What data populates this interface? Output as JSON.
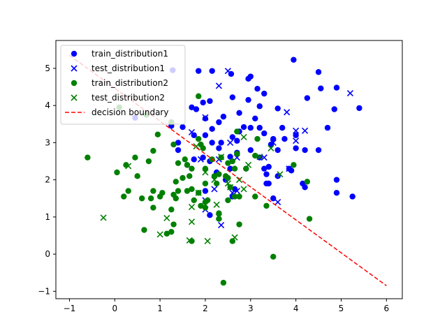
{
  "chart_data": {
    "type": "scatter",
    "xlim": [
      -1.3,
      6.35
    ],
    "ylim": [
      -1.2,
      5.75
    ],
    "x_ticks": [
      -1,
      0,
      1,
      2,
      3,
      4,
      5,
      6
    ],
    "y_ticks": [
      -1,
      0,
      1,
      2,
      3,
      4,
      5
    ],
    "grid": false,
    "legend_position": "top-left",
    "series": [
      {
        "name": "train_distribution1",
        "marker": "circle",
        "color": "#0000ff",
        "points": [
          [
            1.28,
            4.95
          ],
          [
            1.85,
            4.93
          ],
          [
            2.15,
            4.93
          ],
          [
            2.57,
            4.85
          ],
          [
            2.95,
            4.72
          ],
          [
            3.0,
            4.78
          ],
          [
            3.95,
            5.23
          ],
          [
            4.5,
            4.9
          ],
          [
            4.55,
            4.46
          ],
          [
            4.9,
            4.48
          ],
          [
            3.15,
            4.45
          ],
          [
            3.3,
            4.32
          ],
          [
            1.7,
            3.95
          ],
          [
            1.8,
            3.9
          ],
          [
            1.95,
            4.08
          ],
          [
            2.1,
            4.12
          ],
          [
            2.6,
            4.22
          ],
          [
            2.95,
            4.15
          ],
          [
            3.2,
            3.98
          ],
          [
            3.6,
            3.92
          ],
          [
            4.25,
            4.2
          ],
          [
            4.85,
            3.9
          ],
          [
            5.4,
            3.93
          ],
          [
            0.45,
            3.67
          ],
          [
            1.25,
            3.45
          ],
          [
            1.5,
            3.42
          ],
          [
            2.0,
            3.65
          ],
          [
            2.15,
            3.37
          ],
          [
            2.3,
            3.55
          ],
          [
            2.4,
            3.7
          ],
          [
            2.75,
            3.8
          ],
          [
            3.1,
            3.65
          ],
          [
            3.2,
            3.4
          ],
          [
            3.7,
            3.4
          ],
          [
            4.7,
            3.4
          ],
          [
            1.4,
            3.0
          ],
          [
            1.75,
            3.2
          ],
          [
            2.0,
            3.2
          ],
          [
            2.15,
            3.0
          ],
          [
            2.35,
            3.0
          ],
          [
            2.6,
            3.15
          ],
          [
            2.7,
            3.05
          ],
          [
            2.85,
            3.42
          ],
          [
            3.0,
            3.4
          ],
          [
            3.3,
            3.25
          ],
          [
            3.5,
            3.1
          ],
          [
            3.75,
            3.1
          ],
          [
            4.0,
            3.2
          ],
          [
            1.4,
            2.8
          ],
          [
            1.75,
            2.55
          ],
          [
            1.95,
            2.6
          ],
          [
            2.3,
            2.85
          ],
          [
            2.55,
            2.62
          ],
          [
            2.7,
            2.73
          ],
          [
            3.0,
            2.8
          ],
          [
            3.2,
            2.6
          ],
          [
            3.45,
            2.95
          ],
          [
            3.6,
            2.8
          ],
          [
            4.0,
            2.85
          ],
          [
            4.2,
            2.8
          ],
          [
            4.5,
            2.8
          ],
          [
            1.6,
            2.4
          ],
          [
            2.1,
            2.5
          ],
          [
            2.25,
            2.2
          ],
          [
            2.55,
            2.3
          ],
          [
            2.9,
            2.3
          ],
          [
            3.3,
            2.3
          ],
          [
            3.4,
            2.35
          ],
          [
            3.35,
            2.15
          ],
          [
            3.6,
            2.1
          ],
          [
            3.85,
            2.3
          ],
          [
            2.45,
            2.0
          ],
          [
            2.65,
            1.75
          ],
          [
            3.35,
            1.9
          ],
          [
            3.4,
            1.9
          ],
          [
            3.9,
            2.25
          ],
          [
            4.15,
            1.9
          ],
          [
            4.2,
            1.8
          ],
          [
            4.9,
            2.0
          ],
          [
            3.5,
            1.5
          ],
          [
            2.1,
            1.05
          ],
          [
            2.6,
            1.55
          ],
          [
            4.9,
            1.65
          ],
          [
            5.25,
            1.55
          ],
          [
            2.75,
            3.3
          ],
          [
            2.0,
            1.7
          ]
        ]
      },
      {
        "name": "test_distribution1",
        "marker": "x",
        "color": "#0000ff",
        "points": [
          [
            2.5,
            4.93
          ],
          [
            5.2,
            4.33
          ],
          [
            2.3,
            4.53
          ],
          [
            3.8,
            3.82
          ],
          [
            1.7,
            3.28
          ],
          [
            2.0,
            3.68
          ],
          [
            2.55,
            3.0
          ],
          [
            3.5,
            3.0
          ],
          [
            4.0,
            3.32
          ],
          [
            4.2,
            3.32
          ],
          [
            1.9,
            2.55
          ],
          [
            2.3,
            2.55
          ],
          [
            2.7,
            2.6
          ],
          [
            3.3,
            2.6
          ],
          [
            3.85,
            2.3
          ],
          [
            4.0,
            3.05
          ],
          [
            2.2,
            1.75
          ],
          [
            2.7,
            1.7
          ],
          [
            2.6,
            1.65
          ],
          [
            3.6,
            1.4
          ],
          [
            2.0,
            1.45
          ],
          [
            2.0,
            1.2
          ],
          [
            2.35,
            0.78
          ]
        ]
      },
      {
        "name": "train_distribution2",
        "marker": "circle",
        "color": "#008000",
        "points": [
          [
            0.1,
            3.95
          ],
          [
            0.7,
            3.75
          ],
          [
            0.95,
            3.22
          ],
          [
            1.25,
            3.55
          ],
          [
            1.3,
            2.95
          ],
          [
            1.4,
            2.45
          ],
          [
            1.55,
            2.55
          ],
          [
            1.6,
            2.4
          ],
          [
            1.65,
            2.1
          ],
          [
            1.7,
            2.3
          ],
          [
            1.85,
            3.1
          ],
          [
            1.9,
            2.95
          ],
          [
            1.95,
            2.85
          ],
          [
            2.0,
            2.3
          ],
          [
            1.5,
            2.05
          ],
          [
            1.35,
            1.95
          ],
          [
            1.4,
            1.7
          ],
          [
            1.6,
            1.7
          ],
          [
            1.7,
            1.75
          ],
          [
            1.85,
            1.65
          ],
          [
            1.75,
            1.45
          ],
          [
            1.9,
            1.3
          ],
          [
            2.0,
            1.25
          ],
          [
            2.05,
            1.45
          ],
          [
            1.3,
            1.6
          ],
          [
            1.35,
            1.5
          ],
          [
            1.25,
            1.2
          ],
          [
            1.05,
            1.65
          ],
          [
            1.0,
            1.55
          ],
          [
            0.85,
            1.7
          ],
          [
            0.85,
            1.25
          ],
          [
            0.8,
            1.5
          ],
          [
            0.6,
            1.5
          ],
          [
            0.3,
            1.7
          ],
          [
            0.2,
            1.55
          ],
          [
            0.05,
            2.2
          ],
          [
            0.25,
            2.4
          ],
          [
            0.45,
            2.6
          ],
          [
            0.5,
            2.1
          ],
          [
            0.75,
            2.5
          ],
          [
            0.85,
            2.78
          ],
          [
            -0.6,
            2.6
          ],
          [
            0.65,
            0.65
          ],
          [
            1.15,
            0.55
          ],
          [
            1.25,
            0.6
          ],
          [
            1.3,
            0.8
          ],
          [
            1.7,
            0.35
          ],
          [
            2.3,
            0.95
          ],
          [
            2.3,
            1.1
          ],
          [
            2.6,
            0.35
          ],
          [
            2.75,
            0.8
          ],
          [
            2.4,
            -0.77
          ],
          [
            3.5,
            -0.07
          ],
          [
            4.3,
            0.95
          ],
          [
            2.25,
            1.9
          ],
          [
            2.3,
            2.15
          ],
          [
            2.45,
            2.1
          ],
          [
            2.5,
            2.45
          ],
          [
            2.6,
            2.5
          ],
          [
            2.65,
            2.3
          ],
          [
            2.9,
            2.3
          ],
          [
            3.1,
            2.65
          ],
          [
            3.1,
            1.55
          ],
          [
            3.35,
            1.3
          ],
          [
            3.95,
            2.4
          ],
          [
            4.25,
            1.95
          ],
          [
            2.5,
            2.05
          ],
          [
            2.55,
            1.8
          ],
          [
            2.65,
            1.55
          ],
          [
            2.75,
            1.55
          ],
          [
            2.7,
            2.7
          ],
          [
            2.5,
            1.45
          ],
          [
            2.0,
            1.9
          ],
          [
            2.15,
            2.55
          ],
          [
            2.35,
            2.6
          ],
          [
            1.85,
            4.25
          ],
          [
            2.7,
            3.3
          ],
          [
            3.15,
            3.1
          ],
          [
            2.0,
            1.4
          ],
          [
            2.2,
            2.1
          ]
        ]
      },
      {
        "name": "test_distribution2",
        "marker": "x",
        "color": "#008000",
        "points": [
          [
            0.3,
            2.37
          ],
          [
            1.0,
            0.53
          ],
          [
            -0.25,
            0.98
          ],
          [
            1.15,
            0.97
          ],
          [
            1.65,
            0.37
          ],
          [
            1.7,
            1.27
          ],
          [
            1.7,
            0.87
          ],
          [
            2.05,
            0.35
          ],
          [
            2.25,
            1.33
          ],
          [
            2.3,
            1.0
          ],
          [
            2.65,
            0.45
          ],
          [
            1.8,
            2.9
          ],
          [
            1.85,
            1.65
          ],
          [
            2.0,
            2.2
          ],
          [
            2.2,
            2.0
          ],
          [
            2.35,
            2.62
          ],
          [
            2.5,
            1.9
          ],
          [
            2.55,
            1.8
          ],
          [
            2.75,
            2.0
          ],
          [
            2.85,
            3.15
          ],
          [
            2.95,
            2.4
          ],
          [
            3.2,
            2.62
          ],
          [
            3.45,
            2.85
          ],
          [
            3.65,
            2.15
          ],
          [
            2.85,
            1.75
          ]
        ]
      }
    ],
    "decision_boundary": {
      "name": "decision boundary",
      "style": "dashed",
      "color": "#ff0000",
      "points": [
        [
          -1,
          5.35
        ],
        [
          6,
          -0.85
        ]
      ]
    }
  }
}
